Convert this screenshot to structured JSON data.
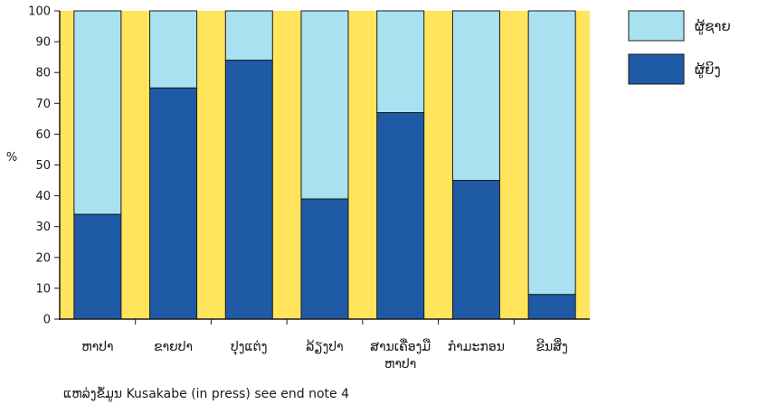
{
  "chart_data": {
    "type": "bar",
    "stacked": true,
    "title": "",
    "xlabel": "",
    "ylabel": "%",
    "ylim": [
      0,
      100
    ],
    "yticks": [
      0,
      10,
      20,
      30,
      40,
      50,
      60,
      70,
      80,
      90,
      100
    ],
    "categories": [
      [
        "ຫາປາ"
      ],
      [
        "ຂາຍປາ"
      ],
      [
        "ປຸງແຕ່ງ"
      ],
      [
        "ລ້ຽງປາ"
      ],
      [
        "ສານເຄື່ອງມື",
        "ຫາປາ"
      ],
      [
        "ກຳມະກອນ"
      ],
      [
        "ຂີນສິ່ງ"
      ]
    ],
    "series": [
      {
        "name": "ຜູ້ຍິງ",
        "color": "#1f5aa6",
        "values": [
          34,
          75,
          84,
          39,
          67,
          45,
          8
        ]
      },
      {
        "name": "ຜູ້ຊາຍ",
        "color": "#a9e1f0",
        "values": [
          66,
          25,
          16,
          61,
          33,
          55,
          92
        ]
      }
    ],
    "legend": [
      "ຜູ້ຊາຍ",
      "ຜູ້ຍິງ"
    ],
    "legend_position": "top-right",
    "background_color": "#ffe45c"
  },
  "source": "ແຫລ່ງຂໍ້ມູນ  Kusakabe (in press) see end note 4"
}
